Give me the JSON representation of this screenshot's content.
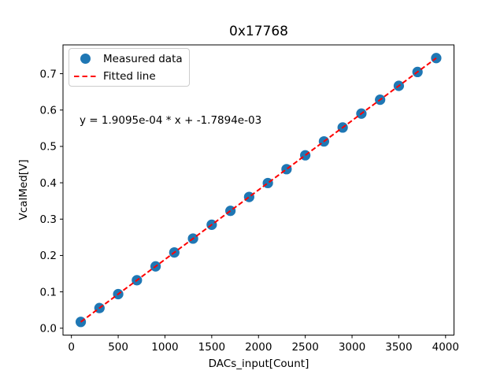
{
  "figure": {
    "background": "#ffffff",
    "text_color": "#000000",
    "spine_color": "#000000",
    "legend_border_color": "#cccccc"
  },
  "chart_data": {
    "type": "scatter",
    "title": "0x17768",
    "xlabel": "DACs_input[Count]",
    "ylabel": "VcalMed[V]",
    "annotation": "y = 1.9095e-04 * x + -1.7894e-03",
    "grid": false,
    "legend_position": "upper left",
    "xlim": [
      -90,
      4090
    ],
    "ylim": [
      -0.0189,
      0.7792
    ],
    "xticks": [
      0,
      500,
      1000,
      1500,
      2000,
      2500,
      3000,
      3500,
      4000
    ],
    "xtick_labels": [
      "0",
      "500",
      "1000",
      "1500",
      "2000",
      "2500",
      "3000",
      "3500",
      "4000"
    ],
    "yticks": [
      0.0,
      0.1,
      0.2,
      0.3,
      0.4,
      0.5,
      0.6,
      0.7
    ],
    "ytick_labels": [
      "0.0",
      "0.1",
      "0.2",
      "0.3",
      "0.4",
      "0.5",
      "0.6",
      "0.7"
    ],
    "x": [
      100,
      300,
      500,
      700,
      900,
      1100,
      1300,
      1500,
      1700,
      1900,
      2100,
      2300,
      2500,
      2700,
      2900,
      3100,
      3300,
      3500,
      3700,
      3900
    ],
    "series": [
      {
        "name": "Measured data",
        "type": "scatter",
        "color": "#1f77b4",
        "values": [
          0.0173,
          0.0555,
          0.0937,
          0.1319,
          0.1701,
          0.2083,
          0.2465,
          0.2846,
          0.3228,
          0.361,
          0.3992,
          0.4374,
          0.4756,
          0.5138,
          0.552,
          0.5902,
          0.6284,
          0.6666,
          0.7047,
          0.7429
        ]
      },
      {
        "name": "Fitted line",
        "type": "line",
        "style": "dashed",
        "color": "#ff0000",
        "slope": 0.00019095,
        "intercept": -0.0017894,
        "x_start": 100,
        "x_end": 3900
      }
    ]
  }
}
